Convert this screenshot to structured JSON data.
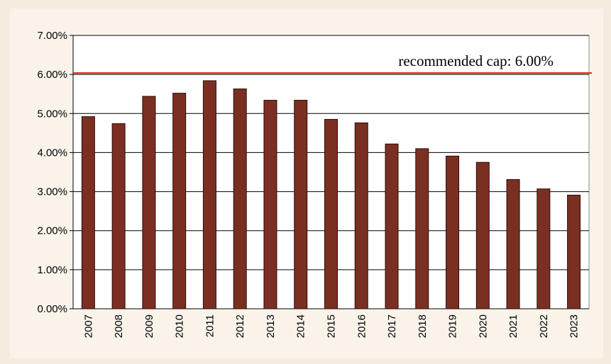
{
  "chart_data": {
    "type": "bar",
    "categories": [
      "2007",
      "2008",
      "2009",
      "2010",
      "2011",
      "2012",
      "2013",
      "2014",
      "2015",
      "2016",
      "2017",
      "2018",
      "2019",
      "2020",
      "2021",
      "2022",
      "2023"
    ],
    "values": [
      4.92,
      4.74,
      5.44,
      5.52,
      5.84,
      5.63,
      5.34,
      5.34,
      4.85,
      4.76,
      4.22,
      4.1,
      3.91,
      3.75,
      3.31,
      3.07,
      2.91
    ],
    "color": "#7b2f22",
    "ylim": [
      0,
      7
    ],
    "yticks": [
      {
        "value": 0,
        "label": "0.00%"
      },
      {
        "value": 1,
        "label": "1.00%"
      },
      {
        "value": 2,
        "label": "2.00%"
      },
      {
        "value": 3,
        "label": "3.00%"
      },
      {
        "value": 4,
        "label": "4.00%"
      },
      {
        "value": 5,
        "label": "5.00%"
      },
      {
        "value": 6,
        "label": "6.00%"
      },
      {
        "value": 7,
        "label": "7.00%"
      }
    ],
    "grid": true,
    "annotations": [
      {
        "text": "recommended cap: 6.00%",
        "value": 6,
        "color": "#e0201b"
      }
    ]
  }
}
